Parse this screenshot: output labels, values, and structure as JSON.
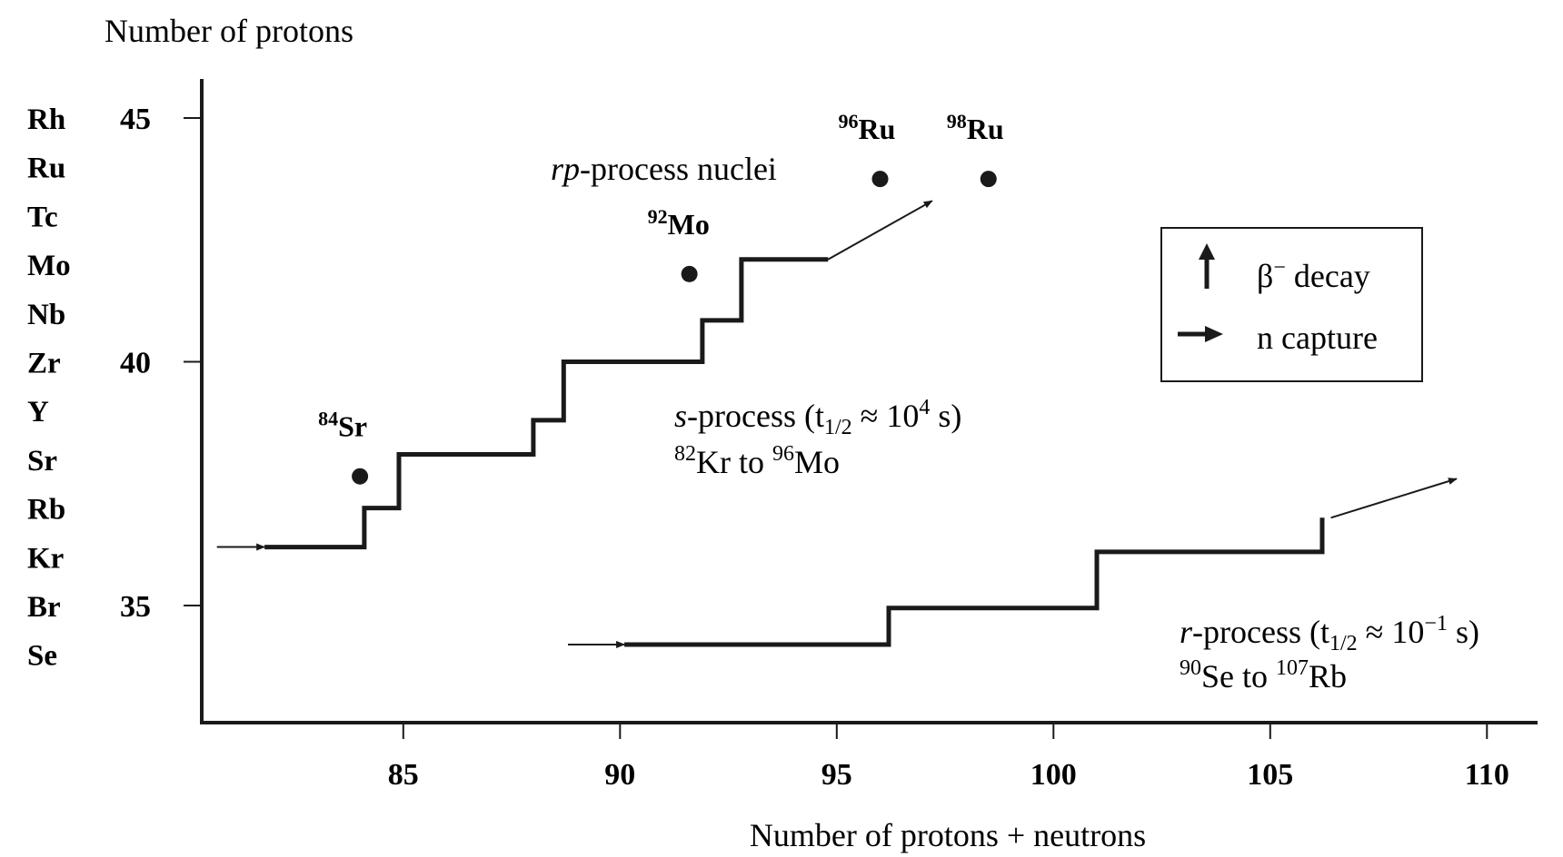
{
  "chart_data": {
    "type": "line",
    "title": "",
    "ylabel": "Number of protons",
    "xlabel": "Number of protons + neutrons",
    "xlim": [
      79,
      111
    ],
    "ylim": [
      32,
      46
    ],
    "x_ticks": [
      {
        "value": 85,
        "label": "85"
      },
      {
        "value": 90,
        "label": "90"
      },
      {
        "value": 95,
        "label": "95"
      },
      {
        "value": 100,
        "label": "100"
      },
      {
        "value": 105,
        "label": "105"
      },
      {
        "value": 110,
        "label": "110"
      }
    ],
    "y_ticks": [
      {
        "value": 35,
        "label": "35"
      },
      {
        "value": 40,
        "label": "40"
      },
      {
        "value": 45,
        "label": "45"
      }
    ],
    "elements": [
      {
        "symbol": "Se",
        "z": 34
      },
      {
        "symbol": "Br",
        "z": 35
      },
      {
        "symbol": "Kr",
        "z": 36
      },
      {
        "symbol": "Rb",
        "z": 37
      },
      {
        "symbol": "Sr",
        "z": 38
      },
      {
        "symbol": "Y",
        "z": 39
      },
      {
        "symbol": "Zr",
        "z": 40
      },
      {
        "symbol": "Nb",
        "z": 41
      },
      {
        "symbol": "Mo",
        "z": 42
      },
      {
        "symbol": "Tc",
        "z": 43
      },
      {
        "symbol": "Ru",
        "z": 44
      },
      {
        "symbol": "Rh",
        "z": 45
      }
    ],
    "series": [
      {
        "key": "s",
        "label_italic": "s",
        "label_main": "-process (t",
        "label_sub": "1/2",
        "label_mid": " ≈ 10",
        "label_sup": "4",
        "label_end": " s)",
        "range_sup1": "82",
        "range_el1": "Kr to ",
        "range_sup2": "96",
        "range_el2": "Mo",
        "path": [
          [
            81.8,
            36.2
          ],
          [
            84.1,
            36.2
          ],
          [
            84.1,
            37.0
          ],
          [
            84.9,
            37.0
          ],
          [
            84.9,
            38.1
          ],
          [
            88.0,
            38.1
          ],
          [
            88.0,
            38.8
          ],
          [
            88.7,
            38.8
          ],
          [
            88.7,
            40.0
          ],
          [
            91.9,
            40.0
          ],
          [
            91.9,
            40.85
          ],
          [
            92.8,
            40.85
          ],
          [
            92.8,
            42.1
          ],
          [
            94.8,
            42.1
          ]
        ],
        "in_arrow": [
          [
            80.7,
            36.2
          ],
          [
            81.8,
            36.2
          ]
        ],
        "out_arrow": [
          [
            94.8,
            42.1
          ],
          [
            97.2,
            43.3
          ]
        ]
      },
      {
        "key": "r",
        "label_italic": "r",
        "label_main": "-process (t",
        "label_sub": "1/2",
        "label_mid": " ≈ 10",
        "label_sup": "−1",
        "label_end": " s)",
        "range_sup1": "90",
        "range_el1": "Se to ",
        "range_sup2": "107",
        "range_el2": "Rb",
        "path": [
          [
            90.1,
            34.2
          ],
          [
            96.2,
            34.2
          ],
          [
            96.2,
            34.95
          ],
          [
            101.0,
            34.95
          ],
          [
            101.0,
            36.1
          ],
          [
            106.2,
            36.1
          ],
          [
            106.2,
            36.8
          ]
        ],
        "in_arrow": [
          [
            88.8,
            34.2
          ],
          [
            90.1,
            34.2
          ]
        ],
        "out_arrow": [
          [
            106.4,
            36.8
          ],
          [
            109.3,
            37.6
          ]
        ]
      }
    ],
    "points": [
      {
        "label_mass": "84",
        "label_el": "Sr",
        "x": 84.0,
        "y": 37.65
      },
      {
        "label_mass": "92",
        "label_el": "Mo",
        "x": 91.6,
        "y": 41.8
      },
      {
        "label_mass": "96",
        "label_el": "Ru",
        "x": 96.0,
        "y": 43.75
      },
      {
        "label_mass": "98",
        "label_el": "Ru",
        "x": 98.5,
        "y": 43.75
      }
    ],
    "points_group_label_italic": "rp",
    "points_group_label": "-process nuclei",
    "legend": {
      "position": "right",
      "items": [
        {
          "label": "β",
          "sup": "−",
          "label_end": " decay",
          "symbol": "up-arrow"
        },
        {
          "label": "n capture",
          "sup": "",
          "label_end": "",
          "symbol": "right-arrow"
        }
      ]
    },
    "grid": false,
    "colors": {
      "ink": "#1a1a1a",
      "background": "#ffffff"
    }
  }
}
